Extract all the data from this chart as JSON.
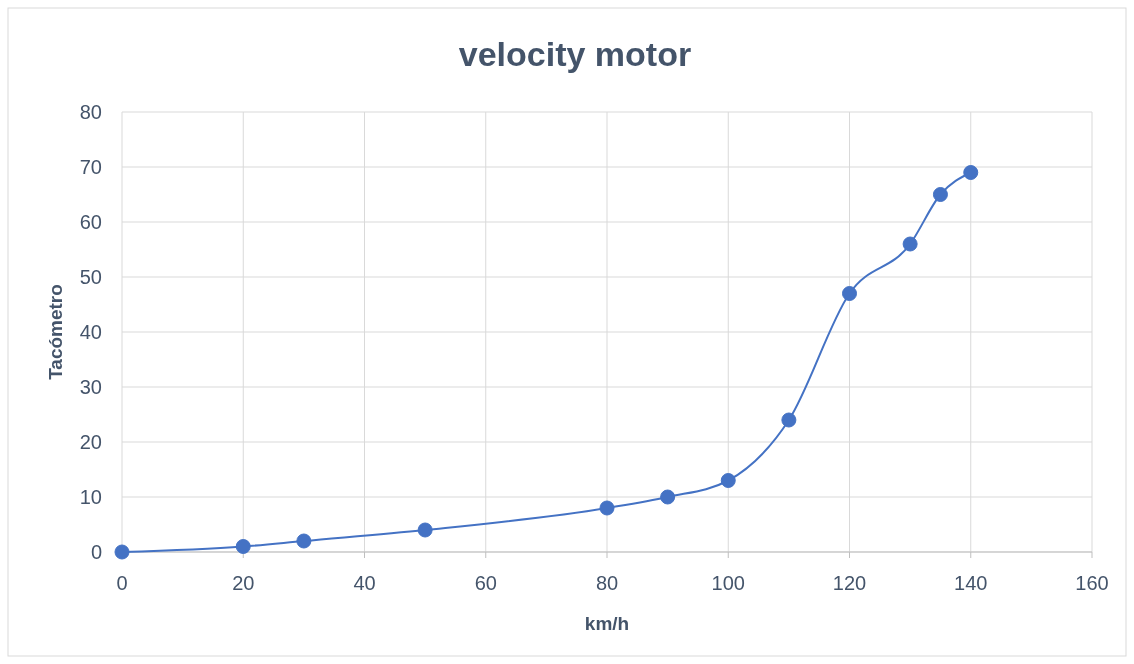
{
  "chart_data": {
    "type": "line",
    "title": "velocity motor",
    "xlabel": "km/h",
    "ylabel": "Tacómetro",
    "x": [
      0,
      20,
      30,
      50,
      80,
      90,
      100,
      110,
      120,
      130,
      135,
      140
    ],
    "series": [
      {
        "color": "#4472c4",
        "values": [
          0,
          1,
          2,
          4,
          8,
          10,
          13,
          24,
          47,
          56,
          65,
          69
        ]
      }
    ],
    "xlim": [
      0,
      160
    ],
    "xticks": [
      0,
      20,
      40,
      60,
      80,
      100,
      120,
      140,
      160
    ],
    "ylim": [
      0,
      80
    ],
    "yticks": [
      0,
      10,
      20,
      30,
      40,
      50,
      60,
      70,
      80
    ],
    "grid": true,
    "marker": "circle",
    "line_style": "solid"
  }
}
